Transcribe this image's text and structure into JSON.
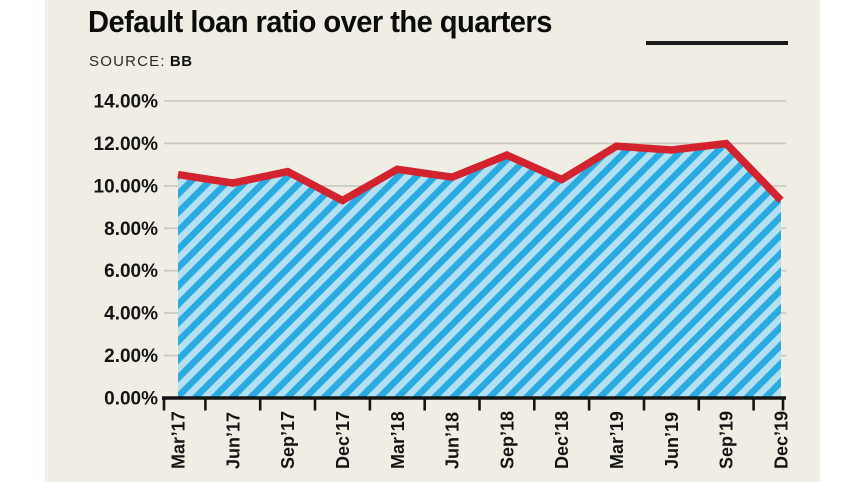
{
  "page": {
    "background": "#ffffff",
    "panel_background": "#f0eee4"
  },
  "header": {
    "title": "Default loan ratio over the quarters",
    "source_label": "SOURCE:",
    "source_value": "BB"
  },
  "chart_data": {
    "type": "area",
    "title": "Default loan ratio over the quarters",
    "source": "BB",
    "categories": [
      "Mar’17",
      "Jun’17",
      "Sep’17",
      "Dec’17",
      "Mar’18",
      "Jun’18",
      "Sep’18",
      "Dec’18",
      "Mar’19",
      "Jun’19",
      "Sep’19",
      "Dec’19"
    ],
    "values": [
      10.53,
      10.13,
      10.67,
      9.31,
      10.78,
      10.41,
      11.45,
      10.3,
      11.87,
      11.69,
      11.99,
      9.32
    ],
    "unit": "percent",
    "ylim": [
      0,
      14
    ],
    "ytick_step": 2,
    "ytick_labels": [
      "0.00%",
      "2.00%",
      "4.00%",
      "6.00%",
      "8.00%",
      "10.00%",
      "12.00%",
      "14.00%"
    ],
    "xlabel": "",
    "ylabel": "",
    "grid": true,
    "legend": "none",
    "x_labels_rotated_degrees": -90,
    "colors": {
      "line": "#d2232e",
      "stripe_dark": "#29abe2",
      "stripe_light": "#b5e0f2",
      "grid": "#c9c6bd",
      "axis": "#141414",
      "text": "#141414"
    }
  }
}
